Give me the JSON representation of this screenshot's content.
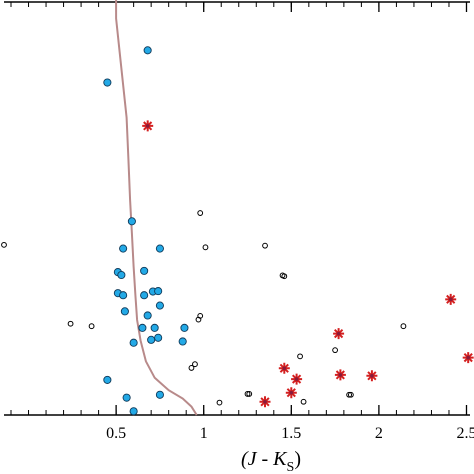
{
  "chart_data": {
    "type": "scatter",
    "title": "",
    "xlabel": {
      "main": "(J - K",
      "sub": "S",
      "close": ")"
    },
    "xlim": [
      -0.14,
      2.52
    ],
    "ylim": [
      0,
      1
    ],
    "x_ticks": [
      {
        "value": 0.5,
        "label": "0.5"
      },
      {
        "value": 1.0,
        "label": "1"
      },
      {
        "value": 1.5,
        "label": "1.5"
      },
      {
        "value": 2.0,
        "label": "2"
      },
      {
        "value": 2.5,
        "label": "2.5"
      }
    ],
    "x_minor_step": 0.1,
    "grid": false,
    "colors": {
      "blue_fill": "#23a9e6",
      "blue_edge": "#0f3a5a",
      "open_edge": "#000000",
      "star": "#d42020",
      "star_dark": "#8a1a3a",
      "curve": "#b88a8a"
    },
    "series": [
      {
        "marker": "filled-circle",
        "points": [
          [
            0.45,
            0.805
          ],
          [
            0.68,
            0.883
          ],
          [
            0.59,
            0.469
          ],
          [
            0.54,
            0.403
          ],
          [
            0.75,
            0.403
          ],
          [
            0.51,
            0.346
          ],
          [
            0.53,
            0.339
          ],
          [
            0.66,
            0.349
          ],
          [
            0.51,
            0.295
          ],
          [
            0.54,
            0.29
          ],
          [
            0.66,
            0.29
          ],
          [
            0.71,
            0.299
          ],
          [
            0.74,
            0.3
          ],
          [
            0.75,
            0.265
          ],
          [
            0.55,
            0.251
          ],
          [
            0.68,
            0.241
          ],
          [
            0.65,
            0.211
          ],
          [
            0.72,
            0.211
          ],
          [
            0.89,
            0.211
          ],
          [
            0.6,
            0.175
          ],
          [
            0.7,
            0.182
          ],
          [
            0.74,
            0.187
          ],
          [
            0.88,
            0.178
          ],
          [
            0.45,
            0.085
          ],
          [
            0.56,
            0.042
          ],
          [
            0.75,
            0.049
          ],
          [
            0.6,
            0.009
          ]
        ]
      },
      {
        "marker": "open-circle",
        "points": [
          [
            -0.14,
            0.412
          ],
          [
            0.98,
            0.489
          ],
          [
            1.01,
            0.406
          ],
          [
            1.35,
            0.41
          ],
          [
            1.45,
            0.338
          ],
          [
            1.46,
            0.336
          ],
          [
            0.98,
            0.24
          ],
          [
            0.97,
            0.231
          ],
          [
            0.24,
            0.221
          ],
          [
            0.36,
            0.215
          ],
          [
            1.55,
            0.142
          ],
          [
            1.75,
            0.157
          ],
          [
            0.93,
            0.114
          ],
          [
            0.95,
            0.123
          ],
          [
            2.14,
            0.215
          ],
          [
            1.83,
            0.049
          ],
          [
            1.84,
            0.049
          ],
          [
            1.09,
            0.03
          ],
          [
            1.25,
            0.051
          ],
          [
            1.26,
            0.051
          ],
          [
            1.57,
            0.032
          ]
        ]
      },
      {
        "marker": "star",
        "points": [
          [
            0.68,
            0.7
          ],
          [
            1.77,
            0.197
          ],
          [
            1.46,
            0.113
          ],
          [
            1.53,
            0.087
          ],
          [
            1.5,
            0.054
          ],
          [
            1.35,
            0.032
          ],
          [
            1.78,
            0.097
          ],
          [
            1.96,
            0.095
          ],
          [
            2.41,
            0.28
          ],
          [
            2.51,
            0.139
          ]
        ]
      }
    ],
    "curve": {
      "name": "",
      "points": [
        [
          0.5,
          1.04
        ],
        [
          0.5,
          0.96
        ],
        [
          0.52,
          0.88
        ],
        [
          0.54,
          0.8
        ],
        [
          0.56,
          0.72
        ],
        [
          0.57,
          0.62
        ],
        [
          0.58,
          0.52
        ],
        [
          0.59,
          0.44
        ],
        [
          0.6,
          0.36
        ],
        [
          0.61,
          0.29
        ],
        [
          0.62,
          0.23
        ],
        [
          0.64,
          0.18
        ],
        [
          0.67,
          0.13
        ],
        [
          0.72,
          0.09
        ],
        [
          0.8,
          0.06
        ],
        [
          0.88,
          0.04
        ],
        [
          0.93,
          0.02
        ],
        [
          0.96,
          0.0
        ]
      ]
    }
  }
}
